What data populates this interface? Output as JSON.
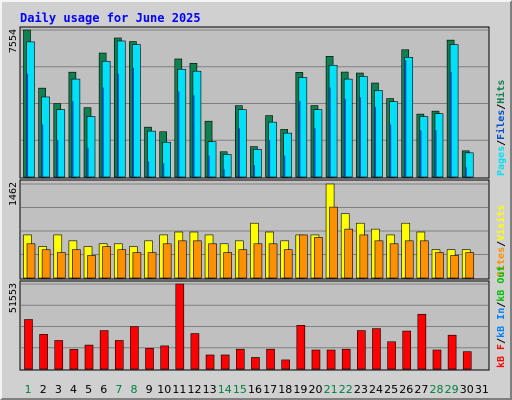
{
  "chart_data": {
    "type": "bar",
    "title": "Daily usage for June 2025",
    "colors": {
      "hits": "#00c8e8",
      "files": "#0050d0",
      "pages": "#00e0f8",
      "pages_back": "#108050",
      "visits": "#ffff00",
      "sites": "#ff9000",
      "kbytes": "#ff0000",
      "kb_in": "#0080ff",
      "kb_out": "#00c000",
      "day_weekend": "#008040",
      "day_weekday": "#000000"
    },
    "days": [
      "1",
      "2",
      "3",
      "4",
      "5",
      "6",
      "7",
      "8",
      "9",
      "10",
      "11",
      "12",
      "13",
      "14",
      "15",
      "16",
      "17",
      "18",
      "19",
      "20",
      "21",
      "22",
      "23",
      "24",
      "25",
      "26",
      "27",
      "28",
      "29",
      "30",
      "31"
    ],
    "weekend_days": [
      "1",
      "7",
      "8",
      "14",
      "15",
      "21",
      "22",
      "28",
      "29"
    ],
    "panels": [
      {
        "id": "hits-files-pages",
        "max_label": "7554",
        "max": 7554,
        "legend": [
          {
            "text": "Pages",
            "color": "#00e0f8"
          },
          {
            "text": "/",
            "color": "#000000"
          },
          {
            "text": "Files",
            "color": "#0050d0"
          },
          {
            "text": "/",
            "color": "#000000"
          },
          {
            "text": "Hits",
            "color": "#108050"
          }
        ],
        "series": [
          {
            "name": "Hits",
            "values": [
              7554,
              4566,
              3770,
              5386,
              3561,
              6370,
              7143,
              6961,
              2562,
              2326,
              6065,
              5843,
              2867,
              1297,
              3666,
              1562,
              3155,
              2444,
              5377,
              3670,
              6203,
              5392,
              5343,
              4829,
              4030,
              6539,
              3231,
              3384,
              7033,
              1345,
              0
            ]
          },
          {
            "name": "Files",
            "values": [
              5300,
              2700,
              1900,
              3900,
              1500,
              4600,
              5300,
              5600,
              800,
              700,
              4400,
              4200,
              1100,
              400,
              2500,
              600,
              1900,
              1100,
              3900,
              2500,
              4600,
              4000,
              4100,
              3600,
              2700,
              6000,
              2400,
              2400,
              5400,
              500,
              0
            ]
          },
          {
            "name": "Pages",
            "values": [
              6943,
              4112,
              3463,
              5029,
              3107,
              5947,
              6990,
              6805,
              2357,
              1784,
              5537,
              5435,
              1813,
              1158,
              3463,
              1417,
              2819,
              2253,
              5112,
              3463,
              5741,
              5029,
              5165,
              4446,
              3872,
              6148,
              3107,
              3253,
              6805,
              1242,
              0
            ]
          }
        ]
      },
      {
        "id": "visits-sites",
        "max_label": "1462",
        "max": 1462,
        "legend": [
          {
            "text": "Sites",
            "color": "#ff9000"
          },
          {
            "text": "/",
            "color": "#000000"
          },
          {
            "text": "Visits",
            "color": "#ffff00"
          }
        ],
        "series": [
          {
            "name": "Visits",
            "values": [
              670,
              488,
              670,
              578,
              488,
              532,
              532,
              488,
              578,
              670,
              715,
              715,
              670,
              532,
              578,
              852,
              715,
              578,
              670,
              670,
              1462,
              1000,
              852,
              760,
              670,
              852,
              715,
              440,
              440,
              440,
              0
            ]
          },
          {
            "name": "Sites",
            "values": [
              532,
              440,
              395,
              440,
              350,
              488,
              440,
              395,
              395,
              532,
              578,
              578,
              532,
              395,
              440,
              532,
              532,
              440,
              670,
              630,
              1102,
              760,
              670,
              578,
              532,
              578,
              578,
              395,
              350,
              395,
              0
            ]
          }
        ]
      },
      {
        "id": "kbytes",
        "max_label": "51553",
        "max": 51553,
        "legend": [
          {
            "text": "kB F",
            "color": "#ff0000"
          },
          {
            "text": "/",
            "color": "#000000"
          },
          {
            "text": "kB In",
            "color": "#0080ff"
          },
          {
            "text": "/",
            "color": "#000000"
          },
          {
            "text": "kB Out",
            "color": "#00c000"
          }
        ],
        "series": [
          {
            "name": "kB F",
            "values": [
              30000,
              21000,
              17300,
              11900,
              14500,
              23300,
              17300,
              25700,
              12500,
              14000,
              51553,
              21500,
              8500,
              8500,
              12000,
              7000,
              12000,
              5500,
              26500,
              11500,
              11500,
              12000,
              23300,
              24500,
              16500,
              23000,
              33200,
              11500,
              20500,
              10500,
              0
            ]
          }
        ]
      }
    ]
  }
}
